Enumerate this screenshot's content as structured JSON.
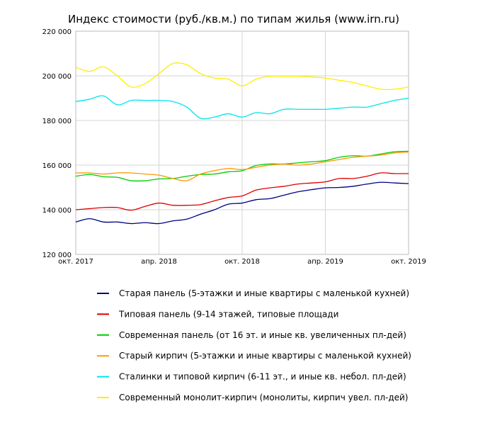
{
  "chart_data": {
    "type": "line",
    "title": "Индекс стоимости (руб./кв.м.) по типам жилья (www.irn.ru)",
    "xlabel": "",
    "ylabel": "",
    "ylim": [
      120000,
      220000
    ],
    "y_ticks": [
      120000,
      140000,
      160000,
      180000,
      200000,
      220000
    ],
    "y_tick_labels": [
      "120 000",
      "140 000",
      "160 000",
      "180 000",
      "200 000",
      "220 000"
    ],
    "x_ticks": [
      0,
      6,
      12,
      18,
      24
    ],
    "x_tick_labels": [
      "окт. 2017",
      "апр. 2018",
      "окт. 2018",
      "апр. 2019",
      "окт. 2019"
    ],
    "grid": true,
    "legend_position": "bottom",
    "x_months": [
      "2017-10",
      "2017-11",
      "2017-12",
      "2018-01",
      "2018-02",
      "2018-03",
      "2018-04",
      "2018-05",
      "2018-06",
      "2018-07",
      "2018-08",
      "2018-09",
      "2018-10",
      "2018-11",
      "2018-12",
      "2019-01",
      "2019-02",
      "2019-03",
      "2019-04",
      "2019-05",
      "2019-06",
      "2019-07",
      "2019-08",
      "2019-09",
      "2019-10"
    ],
    "series": [
      {
        "name": "Старая панель (5-этажки и иные квартиры с маленькой кухней)",
        "color": "#000080",
        "values": [
          134500,
          136000,
          134500,
          134500,
          133800,
          134200,
          133800,
          135000,
          135800,
          138000,
          140000,
          142500,
          143000,
          144500,
          145000,
          146500,
          148000,
          149000,
          149800,
          150000,
          150500,
          151500,
          152300,
          152000,
          151700
        ]
      },
      {
        "name": "Типовая панель (9-14 этажей, типовые площади",
        "color": "#dd0000",
        "values": [
          140000,
          140500,
          141000,
          141000,
          139800,
          141500,
          143000,
          142000,
          142000,
          142300,
          144000,
          145500,
          146200,
          148800,
          149800,
          150500,
          151500,
          152000,
          152500,
          154000,
          154000,
          155000,
          156500,
          156200,
          156200
        ]
      },
      {
        "name": "Современная панель (от 16 эт. и иные кв. увеличенных пл-дей)",
        "color": "#00cc00",
        "values": [
          155000,
          155800,
          154800,
          154500,
          153000,
          153000,
          153800,
          154000,
          155000,
          155800,
          156000,
          157000,
          157500,
          159800,
          160500,
          160500,
          161000,
          161500,
          162000,
          163500,
          164200,
          164000,
          165000,
          166000,
          166200
        ]
      },
      {
        "name": "Старый кирпич (5-этажки и иные квартиры с маленькой кухней)",
        "color": "#ff9900",
        "values": [
          156500,
          156500,
          156000,
          156500,
          156500,
          156000,
          155500,
          154000,
          153000,
          156000,
          157500,
          158500,
          158000,
          159000,
          160000,
          160500,
          160000,
          160500,
          161500,
          162500,
          163500,
          164000,
          164500,
          165500,
          165800
        ]
      },
      {
        "name": "Сталинки и типовой кирпич (6-11 эт., и иные кв. небол. пл-дей)",
        "color": "#00e5ee",
        "values": [
          188500,
          189500,
          191000,
          187000,
          189000,
          189000,
          189000,
          188500,
          186000,
          181000,
          181500,
          183000,
          181500,
          183500,
          183000,
          185000,
          185000,
          185000,
          185000,
          185500,
          186000,
          186000,
          187500,
          189000,
          190000
        ]
      },
      {
        "name": "Современный монолит-кирпич (монолиты, кирпич увел. пл-дей)",
        "color": "#ffee00",
        "values": [
          203800,
          202000,
          204000,
          200000,
          195000,
          196500,
          201000,
          205500,
          205000,
          201000,
          199000,
          198500,
          195500,
          198500,
          199800,
          199800,
          199800,
          199500,
          199000,
          198000,
          197000,
          195500,
          194000,
          194000,
          195000
        ]
      }
    ]
  }
}
